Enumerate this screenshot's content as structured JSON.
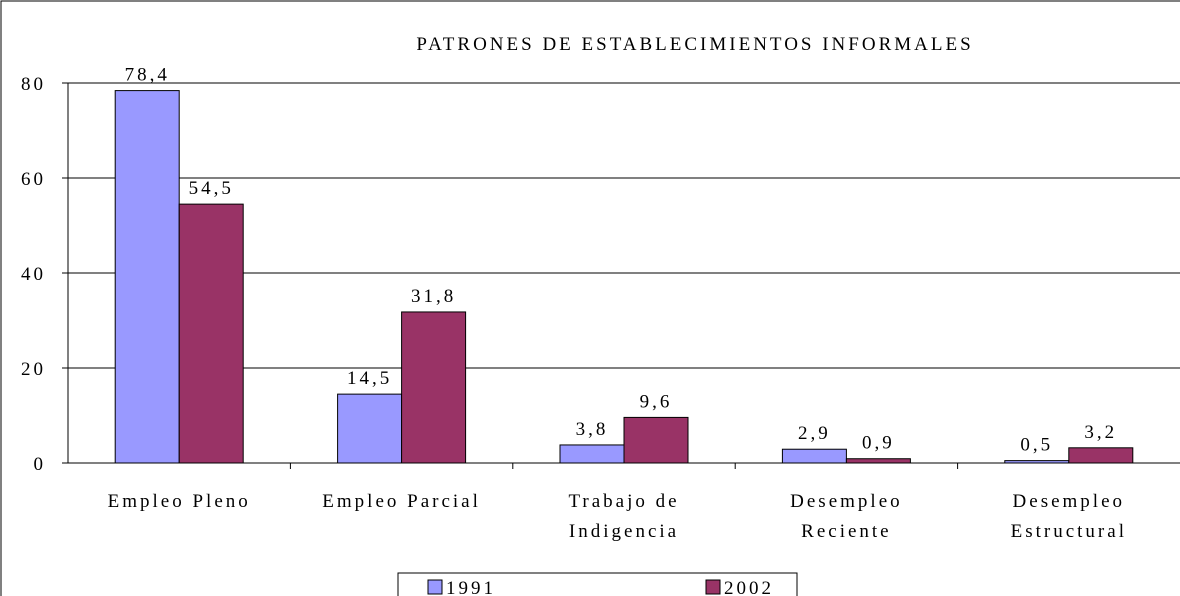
{
  "chart_data": {
    "type": "bar",
    "title": "PATRONES DE ESTABLECIMIENTOS INFORMALES",
    "categories": [
      "Empleo Pleno",
      "Empleo Parcial",
      "Trabajo de\nIndigencia",
      "Desempleo\nReciente",
      "Desempleo\nEstructural"
    ],
    "series": [
      {
        "name": "1991",
        "color": "#9999ff",
        "values": [
          78.4,
          14.5,
          3.8,
          2.9,
          0.5
        ],
        "value_labels": [
          "78,4",
          "14,5",
          "3,8",
          "2,9",
          "0,5"
        ]
      },
      {
        "name": "2002",
        "color": "#993366",
        "values": [
          54.5,
          31.8,
          9.6,
          0.9,
          3.2
        ],
        "value_labels": [
          "54,5",
          "31,8",
          "9,6",
          "0,9",
          "3,2"
        ]
      }
    ],
    "ylim": [
      0,
      80
    ],
    "yticks": [
      0,
      20,
      40,
      60,
      80
    ],
    "grid": true,
    "legend": "bottom"
  }
}
